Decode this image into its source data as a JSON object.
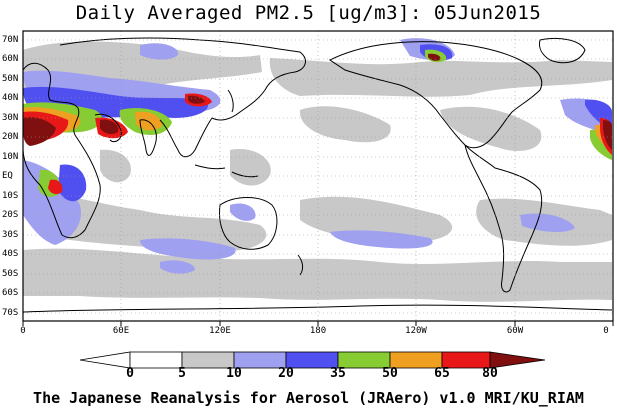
{
  "title": "Daily Averaged PM2.5 [ug/m3]: 05Jun2015",
  "footer": "The Japanese Reanalysis for Aerosol (JRAero) v1.0 MRI/KU_RIAM",
  "lat_labels": [
    "70N",
    "60N",
    "50N",
    "40N",
    "30N",
    "20N",
    "10N",
    "EQ",
    "10S",
    "20S",
    "30S",
    "40S",
    "50S",
    "60S",
    "70S"
  ],
  "lon_labels": [
    "0",
    "60E",
    "120E",
    "180",
    "120W",
    "60W",
    "0"
  ],
  "colorbar": {
    "levels": [
      "0",
      "5",
      "10",
      "20",
      "35",
      "50",
      "65",
      "80"
    ],
    "colors": [
      "#ffffff",
      "#c8c8c8",
      "#a0a0f0",
      "#5050f0",
      "#88cc33",
      "#f0a020",
      "#e81818",
      "#801010"
    ]
  }
}
